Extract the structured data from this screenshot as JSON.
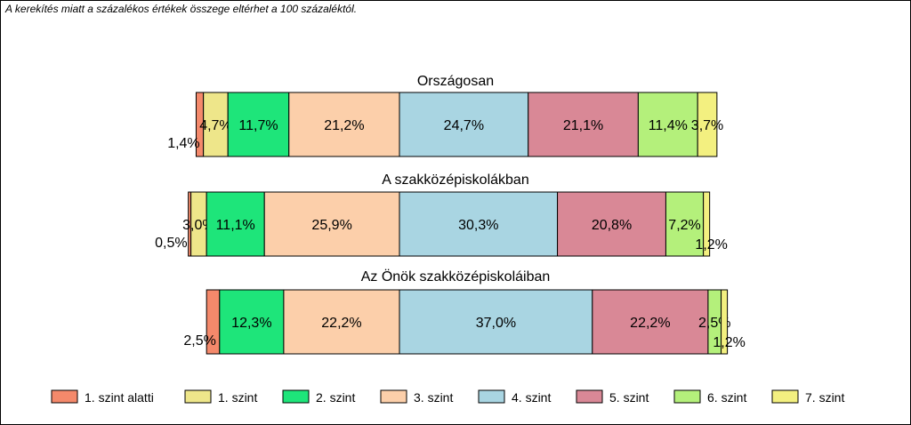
{
  "note": "A kerekítés miatt a  százalékos értékek összege eltérhet a 100 százaléktól.",
  "chart_data": {
    "type": "bar",
    "stacked": true,
    "orientation": "horizontal",
    "colors": [
      "#F4896B",
      "#EEE68A",
      "#1EE57A",
      "#FCCFAA",
      "#A9D5E2",
      "#D98896",
      "#B4F07B",
      "#F3F080"
    ],
    "series_names": [
      "1. szint alatti",
      "1. szint",
      "2. szint",
      "3. szint",
      "4. szint",
      "5. szint",
      "6. szint",
      "7. szint"
    ],
    "bars": [
      {
        "title": "Országosan",
        "values": [
          1.4,
          4.7,
          11.7,
          21.2,
          24.7,
          21.1,
          11.4,
          3.7
        ],
        "labels": [
          "1,4%",
          "4,7%",
          "11,7%",
          "21,2%",
          "24,7%",
          "21,1%",
          "11,4%",
          "3,7%"
        ]
      },
      {
        "title": "A szakközépiskolákban",
        "values": [
          0.5,
          3.0,
          11.1,
          25.9,
          30.3,
          20.8,
          7.2,
          1.2
        ],
        "labels": [
          "0,5%",
          "3,0%",
          "11,1%",
          "25,9%",
          "30,3%",
          "20,8%",
          "7,2%",
          "1,2%"
        ]
      },
      {
        "title": "Az Önök szakközépiskoláiban",
        "values": [
          2.5,
          12.3,
          22.2,
          37.0,
          22.2,
          2.5,
          1.2
        ],
        "labels": [
          "2,5%",
          "12,3%",
          "22,2%",
          "37,0%",
          "22,2%",
          "2,5%",
          "1,2%"
        ],
        "segment_series": [
          0,
          2,
          3,
          4,
          5,
          6,
          7
        ]
      }
    ],
    "legend_position": "bottom"
  }
}
